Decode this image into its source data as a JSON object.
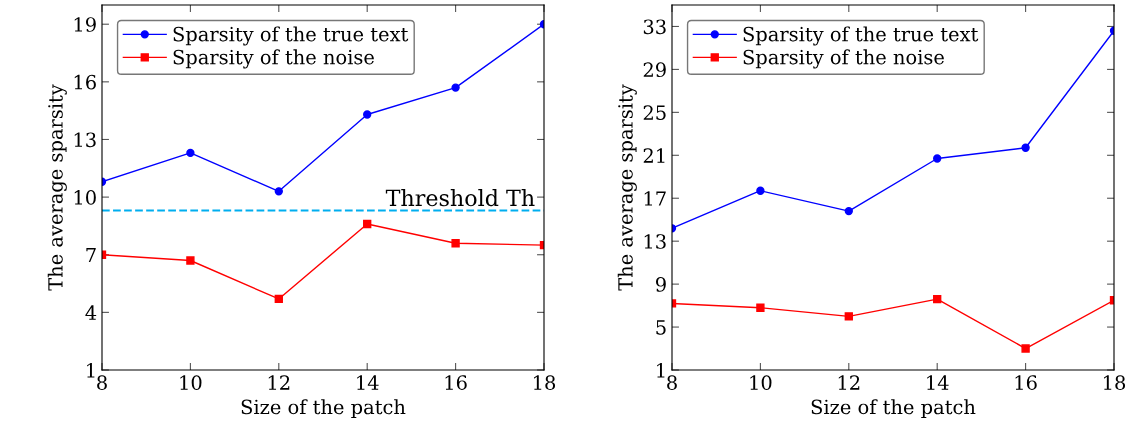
{
  "chart_data": [
    {
      "type": "line",
      "xlabel": "Size of the patch",
      "ylabel": "The average sparsity",
      "x": [
        8,
        10,
        12,
        14,
        16,
        18
      ],
      "series": [
        {
          "name": "Sparsity of the true text",
          "color": "#0000ff",
          "marker": "circle",
          "values": [
            10.8,
            12.3,
            10.3,
            14.3,
            15.7,
            19
          ]
        },
        {
          "name": "Sparsity of the noise",
          "color": "#ff0000",
          "marker": "square",
          "values": [
            7.0,
            6.7,
            4.7,
            8.6,
            7.6,
            7.5
          ]
        }
      ],
      "xlim": [
        8,
        18
      ],
      "xticks": [
        8,
        10,
        12,
        14,
        16,
        18
      ],
      "ylim": [
        1,
        20
      ],
      "yticks": [
        1,
        4,
        7,
        10,
        13,
        16,
        19
      ],
      "ref_lines": [
        {
          "axis": "y",
          "value": 9.3,
          "label": "Threshold Th",
          "color": "#00aeef",
          "line_style": "dashed"
        }
      ],
      "legend": "top left",
      "grid": false
    },
    {
      "type": "line",
      "xlabel": "Size of the patch",
      "ylabel": "The average sparsity",
      "x": [
        8,
        10,
        12,
        14,
        16,
        18
      ],
      "series": [
        {
          "name": "Sparsity of the true text",
          "color": "#0000ff",
          "marker": "circle",
          "values": [
            14.2,
            17.7,
            15.8,
            20.7,
            21.7,
            32.6
          ]
        },
        {
          "name": "Sparsity of the noise",
          "color": "#ff0000",
          "marker": "square",
          "values": [
            7.2,
            6.8,
            6.0,
            7.6,
            3.0,
            7.5
          ]
        }
      ],
      "xlim": [
        8,
        18
      ],
      "xticks": [
        8,
        10,
        12,
        14,
        16,
        18
      ],
      "ylim": [
        1,
        35
      ],
      "yticks": [
        1,
        5,
        9,
        13,
        17,
        21,
        25,
        29,
        33
      ],
      "legend": "top left",
      "grid": false
    }
  ]
}
